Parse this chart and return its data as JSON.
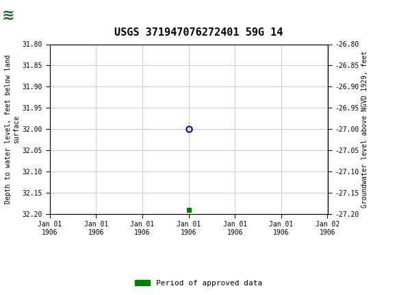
{
  "title": "USGS 371947076272401 59G 14",
  "ylabel_left": "Depth to water level, feet below land\nsurface",
  "ylabel_right": "Groundwater level above NGVD 1929, feet",
  "ylim_left": [
    31.8,
    32.2
  ],
  "ylim_right": [
    -26.8,
    -27.2
  ],
  "yticks_left": [
    31.8,
    31.85,
    31.9,
    31.95,
    32.0,
    32.05,
    32.1,
    32.15,
    32.2
  ],
  "yticks_right": [
    -26.8,
    -26.85,
    -26.9,
    -26.95,
    -27.0,
    -27.05,
    -27.1,
    -27.15,
    -27.2
  ],
  "point_x": 3,
  "point_y": 32.0,
  "green_point_x": 3,
  "green_point_y": 32.19,
  "x_range": [
    0,
    6
  ],
  "x_ticks": [
    0,
    1,
    2,
    3,
    4,
    5,
    6
  ],
  "x_labels": [
    "Jan 01\n1906",
    "Jan 01\n1906",
    "Jan 01\n1906",
    "Jan 01\n1906",
    "Jan 01\n1906",
    "Jan 01\n1906",
    "Jan 02\n1906"
  ],
  "header_color": "#1a6630",
  "grid_color": "#cccccc",
  "background_color": "#ffffff",
  "legend_label": "Period of approved data",
  "legend_color": "#008000",
  "point_color": "#0000cc",
  "font_family": "monospace",
  "title_fontsize": 11,
  "tick_fontsize": 7,
  "label_fontsize": 7
}
